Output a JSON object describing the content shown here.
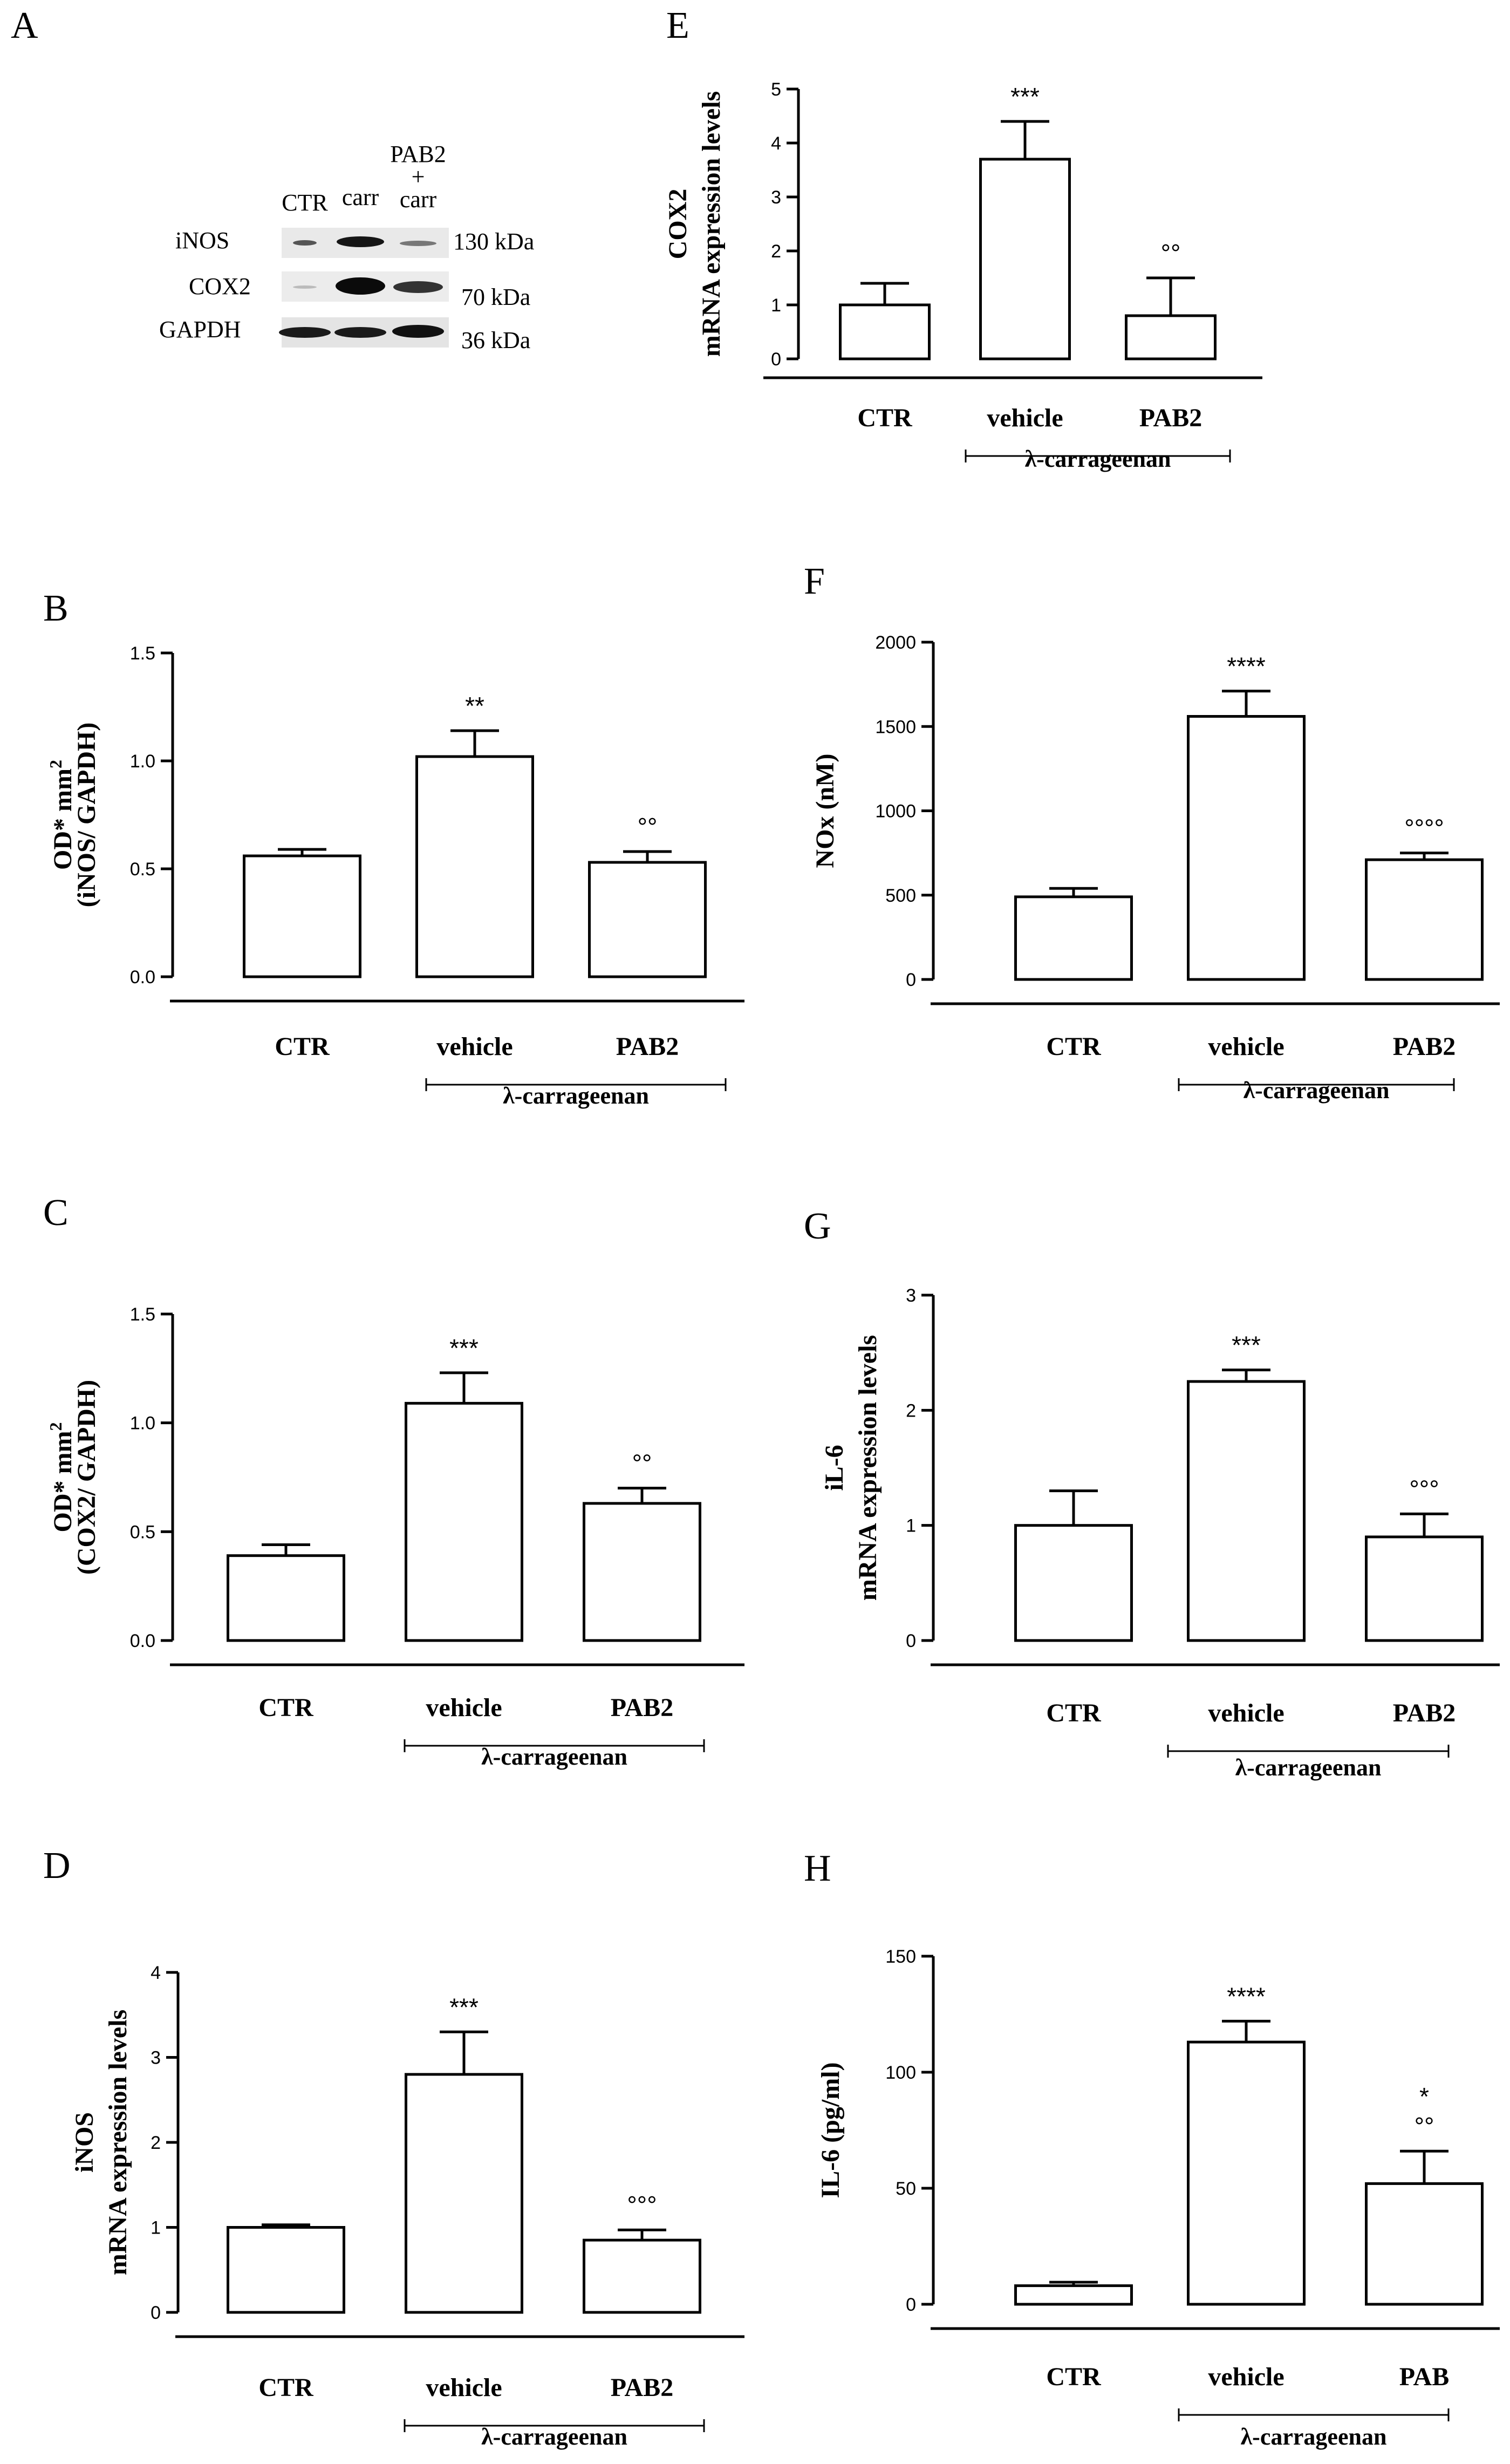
{
  "western_blot": {
    "panel_label": "A",
    "lanes": [
      "CTR",
      "carr",
      "PAB2\n+\ncarr"
    ],
    "bands": [
      {
        "protein": "iNOS",
        "size": "130 kDa"
      },
      {
        "protein": "COX2",
        "size": "70 kDa"
      },
      {
        "protein": "GAPDH",
        "size": "36 kDa"
      }
    ]
  },
  "chart_data": [
    {
      "id": "B",
      "panel_label": "B",
      "type": "bar",
      "categories": [
        "CTR",
        "vehicle",
        "PAB2"
      ],
      "values": [
        0.56,
        1.02,
        0.53
      ],
      "errors": [
        0.03,
        0.12,
        0.05
      ],
      "ylabel": [
        "OD* mm²",
        "(iNOS/ GAPDH)"
      ],
      "ylim": [
        0,
        1.5
      ],
      "yticks": [
        "0.0",
        "0.5",
        "1.0",
        "1.5"
      ],
      "annotations": [
        "",
        "**",
        "°°"
      ],
      "group_label": "λ-carrageenan"
    },
    {
      "id": "C",
      "panel_label": "C",
      "type": "bar",
      "categories": [
        "CTR",
        "vehicle",
        "PAB2"
      ],
      "values": [
        0.39,
        1.09,
        0.63
      ],
      "errors": [
        0.05,
        0.14,
        0.07
      ],
      "ylabel": [
        "OD* mm²",
        "(COX2/ GAPDH)"
      ],
      "ylim": [
        0,
        1.5
      ],
      "yticks": [
        "0.0",
        "0.5",
        "1.0",
        "1.5"
      ],
      "annotations": [
        "",
        "***",
        "°°"
      ],
      "group_label": "λ-carrageenan"
    },
    {
      "id": "D",
      "panel_label": "D",
      "type": "bar",
      "categories": [
        "CTR",
        "vehicle",
        "PAB2"
      ],
      "values": [
        1.0,
        2.8,
        0.85
      ],
      "errors": [
        0.03,
        0.5,
        0.12
      ],
      "ylabel": [
        "iNOS",
        "mRNA expression levels"
      ],
      "ylim": [
        0,
        4
      ],
      "yticks": [
        "0",
        "1",
        "2",
        "3",
        "4"
      ],
      "annotations": [
        "",
        "***",
        "°°°"
      ],
      "group_label": "λ-carrageenan"
    },
    {
      "id": "E",
      "panel_label": "E",
      "type": "bar",
      "categories": [
        "CTR",
        "vehicle",
        "PAB2"
      ],
      "values": [
        1.0,
        3.7,
        0.8
      ],
      "errors": [
        0.4,
        0.7,
        0.7
      ],
      "ylabel": [
        "COX2",
        "mRNA expression levels"
      ],
      "ylim": [
        0,
        5
      ],
      "yticks": [
        "0",
        "1",
        "2",
        "3",
        "4",
        "5"
      ],
      "annotations": [
        "",
        "***",
        "°°"
      ],
      "group_label": "λ-carrageenan"
    },
    {
      "id": "F",
      "panel_label": "F",
      "type": "bar",
      "categories": [
        "CTR",
        "vehicle",
        "PAB2"
      ],
      "values": [
        490,
        1560,
        710
      ],
      "errors": [
        50,
        150,
        40
      ],
      "ylabel": [
        "NOx (nM)"
      ],
      "ylim": [
        0,
        2000
      ],
      "yticks": [
        "0",
        "500",
        "1000",
        "1500",
        "2000"
      ],
      "annotations": [
        "",
        "****",
        "°°°°"
      ],
      "group_label": "λ-carrageenan"
    },
    {
      "id": "G",
      "panel_label": "G",
      "type": "bar",
      "categories": [
        "CTR",
        "vehicle",
        "PAB2"
      ],
      "values": [
        1.0,
        2.25,
        0.9
      ],
      "errors": [
        0.3,
        0.1,
        0.2
      ],
      "ylabel": [
        "iL-6",
        "mRNA expression levels"
      ],
      "ylim": [
        0,
        3
      ],
      "yticks": [
        "0",
        "1",
        "2",
        "3"
      ],
      "annotations": [
        "",
        "***",
        "°°°"
      ],
      "group_label": "λ-carrageenan"
    },
    {
      "id": "H",
      "panel_label": "H",
      "type": "bar",
      "categories": [
        "CTR",
        "vehicle",
        "PAB"
      ],
      "values": [
        8,
        113,
        52
      ],
      "errors": [
        1.5,
        9,
        14
      ],
      "ylabel": [
        "IL-6 (pg/ml)"
      ],
      "ylim": [
        0,
        150
      ],
      "yticks": [
        "0",
        "50",
        "100",
        "150"
      ],
      "annotations": [
        "",
        "****",
        "*\n°°"
      ],
      "group_label": "λ-carrageenan"
    }
  ]
}
